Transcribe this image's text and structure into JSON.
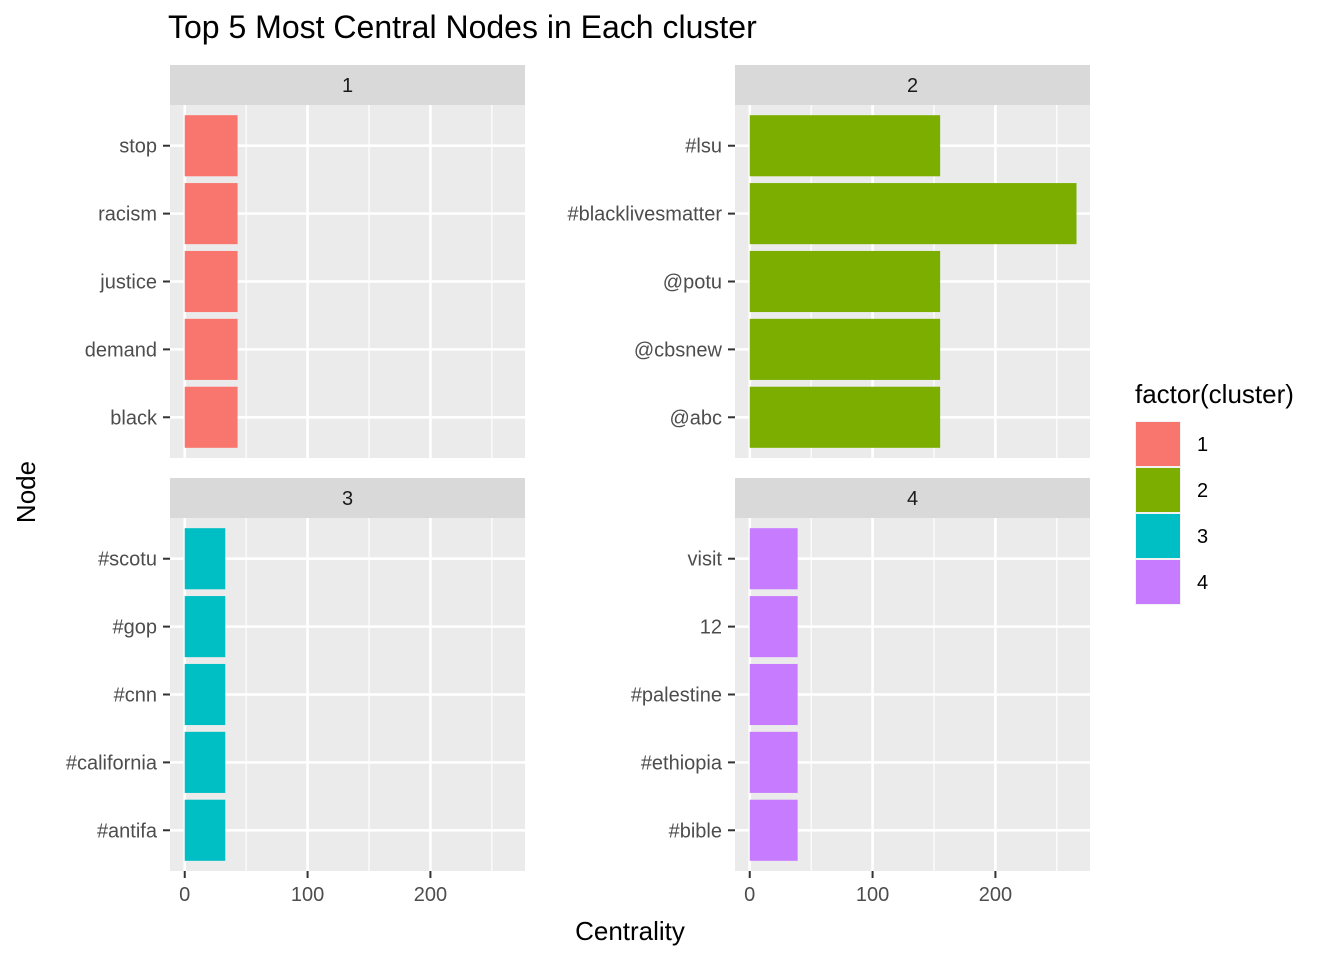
{
  "chart_data": {
    "type": "bar",
    "orientation": "horizontal",
    "title": "Top 5 Most Central Nodes in Each cluster",
    "xlabel": "Centrality",
    "ylabel": "Node",
    "xlim": [
      -12,
      277
    ],
    "xticks": [
      0,
      100,
      200
    ],
    "grid": true,
    "legend": {
      "title": "factor(cluster)",
      "position": "right",
      "items": [
        {
          "label": "1",
          "color": "#F8766D"
        },
        {
          "label": "2",
          "color": "#7CAE00"
        },
        {
          "label": "3",
          "color": "#00BFC4"
        },
        {
          "label": "4",
          "color": "#C77CFF"
        }
      ]
    },
    "facets": [
      {
        "label": "1",
        "color": "#F8766D",
        "categories": [
          "stop",
          "racism",
          "justice",
          "demand",
          "black"
        ],
        "values": [
          43,
          43,
          43,
          43,
          43
        ]
      },
      {
        "label": "2",
        "color": "#7CAE00",
        "categories": [
          "#lsu",
          "#blacklivesmatter",
          "@potu",
          "@cbsnew",
          "@abc"
        ],
        "values": [
          155,
          266,
          155,
          155,
          155
        ]
      },
      {
        "label": "3",
        "color": "#00BFC4",
        "categories": [
          "#scotu",
          "#gop",
          "#cnn",
          "#california",
          "#antifa"
        ],
        "values": [
          33,
          33,
          33,
          33,
          33
        ]
      },
      {
        "label": "4",
        "color": "#C77CFF",
        "categories": [
          "visit",
          "12",
          "#palestine",
          "#ethiopia",
          "#bible"
        ],
        "values": [
          39,
          39,
          39,
          39,
          39
        ]
      }
    ]
  }
}
